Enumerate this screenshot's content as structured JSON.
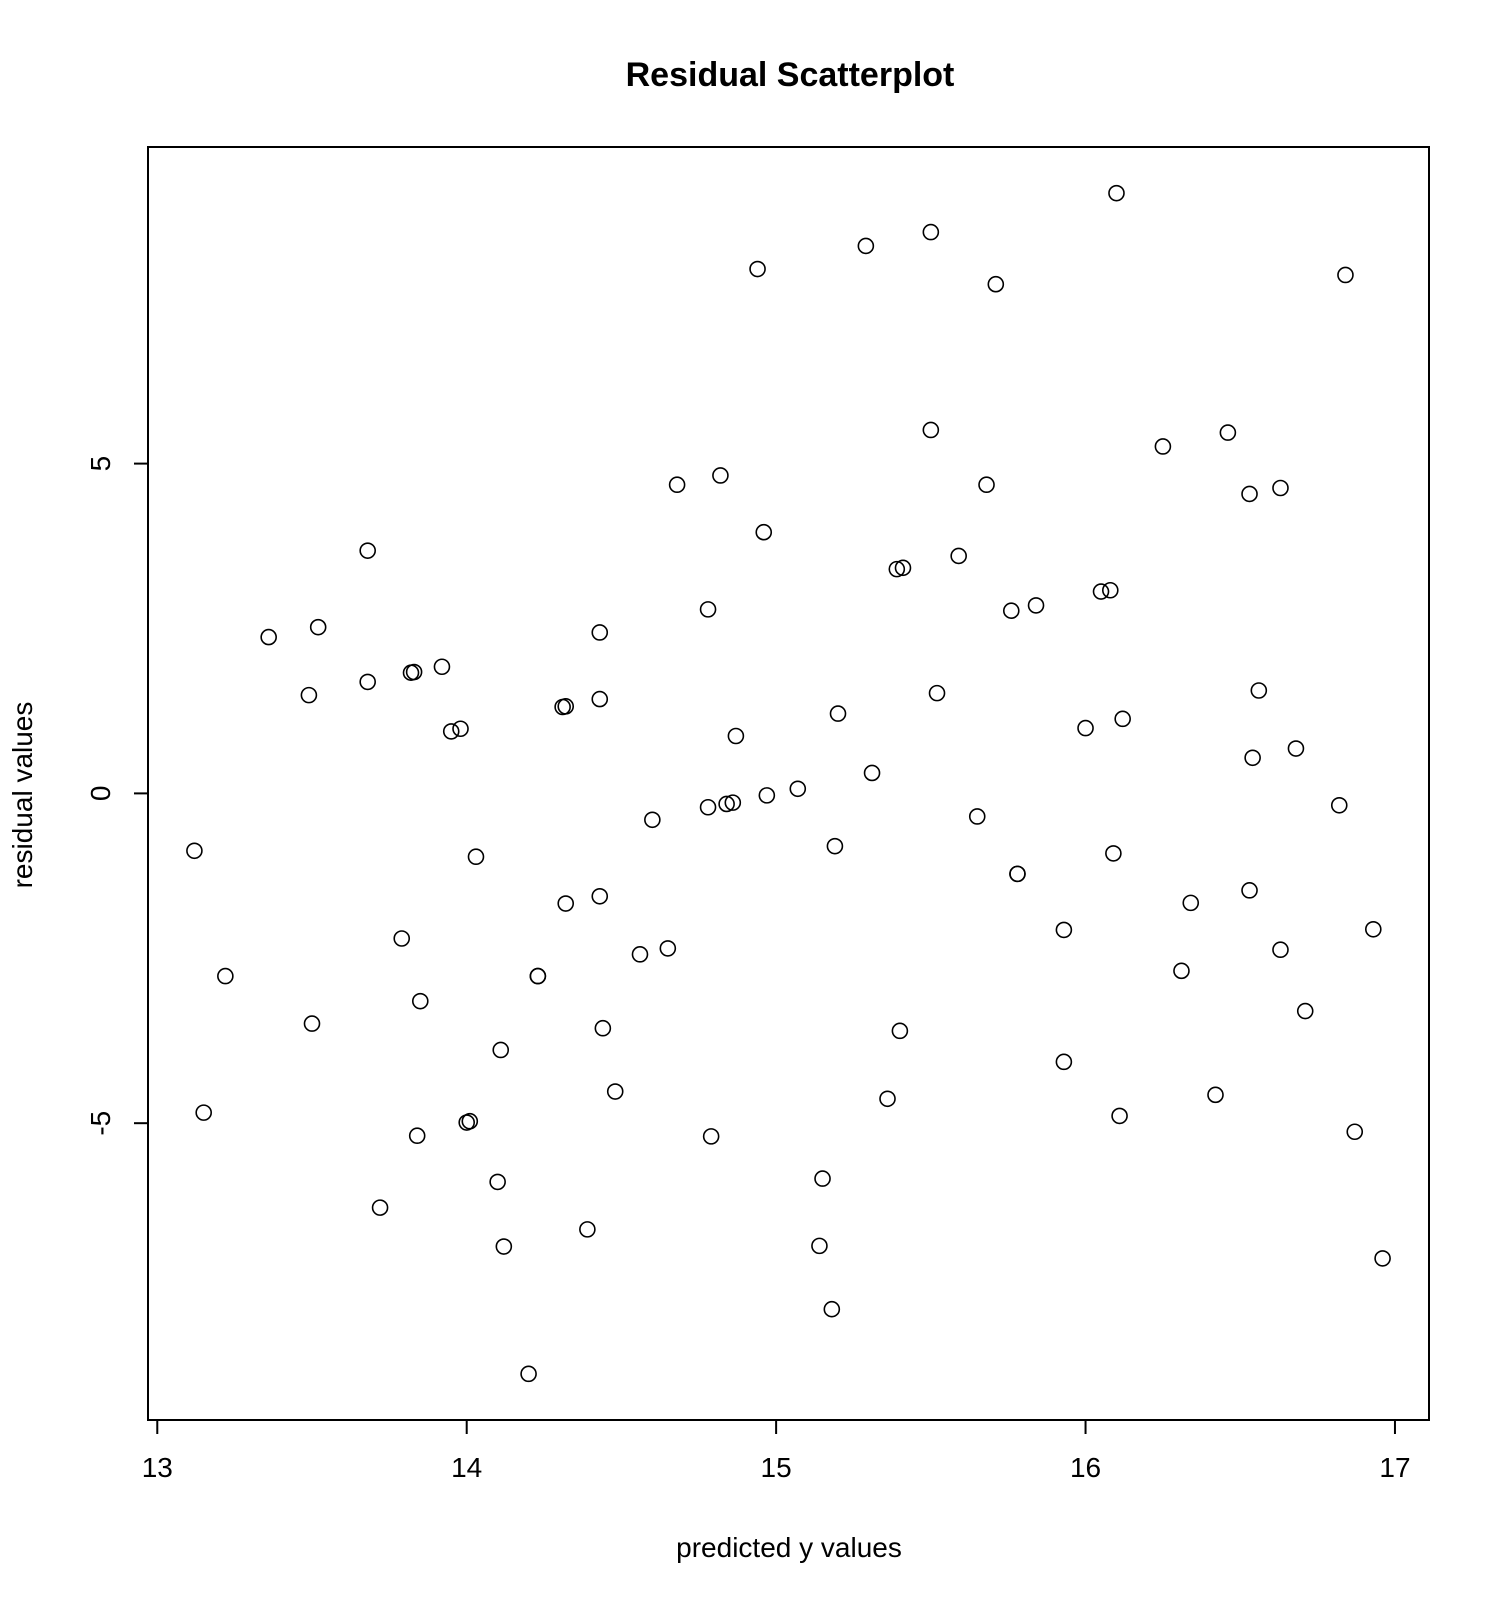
{
  "chart_data": {
    "type": "scatter",
    "title": "Residual Scatterplot",
    "xlabel": "predicted y values",
    "ylabel": "residual values",
    "xlim": [
      12.97,
      17.11
    ],
    "ylim": [
      -9.5,
      9.8
    ],
    "xticks": [
      13,
      14,
      15,
      16,
      17
    ],
    "yticks": [
      -5,
      0,
      5
    ],
    "grid": false,
    "legend": "none",
    "points": [
      [
        13.12,
        -0.87
      ],
      [
        13.15,
        -4.84
      ],
      [
        13.22,
        -2.77
      ],
      [
        13.36,
        2.37
      ],
      [
        13.49,
        1.49
      ],
      [
        13.5,
        -3.49
      ],
      [
        13.52,
        2.52
      ],
      [
        13.68,
        3.68
      ],
      [
        13.68,
        1.69
      ],
      [
        13.72,
        -6.28
      ],
      [
        13.79,
        -2.2
      ],
      [
        13.82,
        1.83
      ],
      [
        13.83,
        1.84
      ],
      [
        13.84,
        -5.19
      ],
      [
        13.85,
        -3.15
      ],
      [
        13.92,
        1.92
      ],
      [
        13.95,
        0.94
      ],
      [
        13.98,
        0.98
      ],
      [
        14.0,
        -4.99
      ],
      [
        14.01,
        -4.97
      ],
      [
        14.03,
        -0.96
      ],
      [
        14.1,
        -5.89
      ],
      [
        14.11,
        -3.89
      ],
      [
        14.12,
        -6.87
      ],
      [
        14.2,
        -8.8
      ],
      [
        14.23,
        -2.77
      ],
      [
        14.23,
        -2.77
      ],
      [
        14.31,
        1.31
      ],
      [
        14.32,
        1.32
      ],
      [
        14.32,
        -1.67
      ],
      [
        14.39,
        -6.61
      ],
      [
        14.43,
        2.44
      ],
      [
        14.43,
        1.43
      ],
      [
        14.43,
        -1.56
      ],
      [
        14.44,
        -3.56
      ],
      [
        14.48,
        -4.52
      ],
      [
        14.56,
        -2.44
      ],
      [
        14.6,
        -0.4
      ],
      [
        14.65,
        -2.35
      ],
      [
        14.68,
        4.68
      ],
      [
        14.78,
        -0.21
      ],
      [
        14.78,
        2.79
      ],
      [
        14.79,
        -5.2
      ],
      [
        14.82,
        4.82
      ],
      [
        14.84,
        -0.16
      ],
      [
        14.86,
        -0.14
      ],
      [
        14.87,
        0.87
      ],
      [
        14.94,
        7.95
      ],
      [
        14.96,
        3.96
      ],
      [
        14.97,
        -0.03
      ],
      [
        15.07,
        0.07
      ],
      [
        15.14,
        -6.86
      ],
      [
        15.15,
        -5.84
      ],
      [
        15.18,
        -7.82
      ],
      [
        15.19,
        -0.8
      ],
      [
        15.2,
        1.21
      ],
      [
        15.29,
        8.3
      ],
      [
        15.31,
        0.31
      ],
      [
        15.36,
        -4.63
      ],
      [
        15.39,
        3.4
      ],
      [
        15.4,
        -3.6
      ],
      [
        15.41,
        3.42
      ],
      [
        15.5,
        8.51
      ],
      [
        15.5,
        5.51
      ],
      [
        15.52,
        1.52
      ],
      [
        15.59,
        3.6
      ],
      [
        15.65,
        -0.35
      ],
      [
        15.68,
        4.68
      ],
      [
        15.71,
        7.72
      ],
      [
        15.76,
        2.77
      ],
      [
        15.78,
        -1.22
      ],
      [
        15.78,
        -1.22
      ],
      [
        15.84,
        2.85
      ],
      [
        15.93,
        -4.07
      ],
      [
        15.93,
        -2.07
      ],
      [
        16.0,
        0.99
      ],
      [
        16.05,
        3.06
      ],
      [
        16.08,
        3.08
      ],
      [
        16.09,
        -0.91
      ],
      [
        16.1,
        9.1
      ],
      [
        16.11,
        -4.89
      ],
      [
        16.12,
        1.13
      ],
      [
        16.25,
        5.26
      ],
      [
        16.31,
        -2.69
      ],
      [
        16.34,
        -1.66
      ],
      [
        16.42,
        -4.57
      ],
      [
        16.46,
        5.47
      ],
      [
        16.53,
        4.54
      ],
      [
        16.53,
        -1.47
      ],
      [
        16.54,
        0.54
      ],
      [
        16.56,
        1.56
      ],
      [
        16.63,
        4.63
      ],
      [
        16.63,
        -2.37
      ],
      [
        16.68,
        0.68
      ],
      [
        16.71,
        -3.3
      ],
      [
        16.82,
        -0.18
      ],
      [
        16.84,
        7.86
      ],
      [
        16.87,
        -5.13
      ],
      [
        16.93,
        -2.06
      ],
      [
        16.96,
        -7.05
      ]
    ]
  }
}
